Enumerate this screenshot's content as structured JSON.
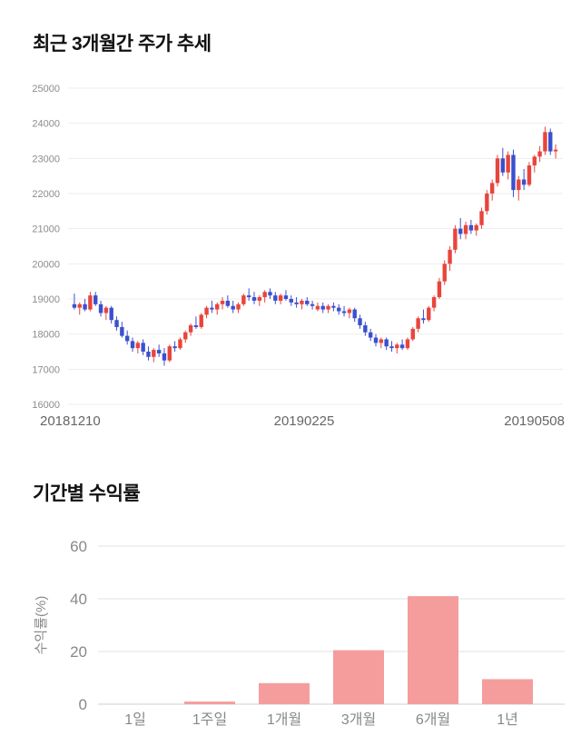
{
  "price_section": {
    "title": "최근 3개월간 주가 추세"
  },
  "returns_section": {
    "title": "기간별 수익률"
  },
  "chart_data": [
    {
      "type": "candlestick",
      "title": "최근 3개월간 주가 추세",
      "ylim": [
        16000,
        25000
      ],
      "y_ticks": [
        16000,
        17000,
        18000,
        19000,
        20000,
        21000,
        22000,
        23000,
        24000,
        25000
      ],
      "x_tick_labels": [
        "20181210",
        "20190225",
        "20190508"
      ],
      "up_color": "#e8453c",
      "down_color": "#3b50ce",
      "grid": true,
      "candles": [
        [
          18850,
          19150,
          18700,
          18750
        ],
        [
          18750,
          18900,
          18550,
          18850
        ],
        [
          18850,
          19000,
          18650,
          18700
        ],
        [
          18700,
          19200,
          18650,
          19100
        ],
        [
          19100,
          19200,
          18800,
          18850
        ],
        [
          18850,
          18950,
          18500,
          18600
        ],
        [
          18600,
          18800,
          18400,
          18750
        ],
        [
          18750,
          18800,
          18300,
          18400
        ],
        [
          18400,
          18500,
          18100,
          18200
        ],
        [
          18200,
          18350,
          17900,
          17950
        ],
        [
          17950,
          18100,
          17700,
          17800
        ],
        [
          17800,
          17900,
          17500,
          17600
        ],
        [
          17600,
          17800,
          17450,
          17750
        ],
        [
          17750,
          17850,
          17400,
          17500
        ],
        [
          17500,
          17650,
          17250,
          17350
        ],
        [
          17350,
          17600,
          17200,
          17550
        ],
        [
          17550,
          17700,
          17350,
          17450
        ],
        [
          17450,
          17600,
          17100,
          17250
        ],
        [
          17250,
          17700,
          17200,
          17650
        ],
        [
          17650,
          17800,
          17500,
          17600
        ],
        [
          17600,
          17900,
          17550,
          17850
        ],
        [
          17850,
          18100,
          17750,
          18050
        ],
        [
          18050,
          18300,
          17950,
          18250
        ],
        [
          18250,
          18500,
          18150,
          18200
        ],
        [
          18200,
          18600,
          18150,
          18550
        ],
        [
          18550,
          18800,
          18450,
          18750
        ],
        [
          18750,
          18950,
          18600,
          18700
        ],
        [
          18700,
          18900,
          18550,
          18850
        ],
        [
          18850,
          19050,
          18700,
          18950
        ],
        [
          18950,
          19100,
          18750,
          18800
        ],
        [
          18800,
          18950,
          18600,
          18700
        ],
        [
          18700,
          18900,
          18600,
          18850
        ],
        [
          18850,
          19150,
          18800,
          19100
        ],
        [
          19100,
          19300,
          18950,
          19050
        ],
        [
          19050,
          19200,
          18850,
          18950
        ],
        [
          18950,
          19100,
          18800,
          19050
        ],
        [
          19050,
          19250,
          18900,
          19200
        ],
        [
          19200,
          19300,
          19000,
          19100
        ],
        [
          19100,
          19200,
          18850,
          18950
        ],
        [
          18950,
          19150,
          18850,
          19100
        ],
        [
          19100,
          19250,
          18950,
          19000
        ],
        [
          19000,
          19100,
          18800,
          18900
        ],
        [
          18900,
          19050,
          18750,
          18850
        ],
        [
          18850,
          19000,
          18700,
          18950
        ],
        [
          18950,
          19050,
          18800,
          18850
        ],
        [
          18850,
          18950,
          18700,
          18800
        ],
        [
          18700,
          18900,
          18650,
          18800
        ],
        [
          18800,
          18900,
          18600,
          18700
        ],
        [
          18700,
          18850,
          18600,
          18800
        ],
        [
          18800,
          18900,
          18650,
          18750
        ],
        [
          18750,
          18850,
          18550,
          18650
        ],
        [
          18650,
          18800,
          18500,
          18600
        ],
        [
          18600,
          18750,
          18450,
          18700
        ],
        [
          18700,
          18750,
          18350,
          18450
        ],
        [
          18450,
          18550,
          18150,
          18250
        ],
        [
          18250,
          18350,
          17950,
          18050
        ],
        [
          18050,
          18150,
          17800,
          17900
        ],
        [
          17900,
          18000,
          17650,
          17750
        ],
        [
          17750,
          17900,
          17600,
          17850
        ],
        [
          17850,
          17900,
          17550,
          17650
        ],
        [
          17650,
          17800,
          17500,
          17600
        ],
        [
          17600,
          17750,
          17450,
          17700
        ],
        [
          17700,
          17850,
          17550,
          17600
        ],
        [
          17600,
          17900,
          17550,
          17850
        ],
        [
          17850,
          18200,
          17800,
          18150
        ],
        [
          18150,
          18500,
          18050,
          18450
        ],
        [
          18450,
          18700,
          18300,
          18400
        ],
        [
          18400,
          18800,
          18350,
          18750
        ],
        [
          18750,
          19100,
          18650,
          19050
        ],
        [
          19050,
          19600,
          19000,
          19500
        ],
        [
          19500,
          20100,
          19400,
          20000
        ],
        [
          20000,
          20500,
          19800,
          20400
        ],
        [
          20400,
          21100,
          20300,
          21000
        ],
        [
          21000,
          21300,
          20700,
          20850
        ],
        [
          20850,
          21200,
          20700,
          21100
        ],
        [
          21100,
          21250,
          20850,
          20950
        ],
        [
          20950,
          21150,
          20800,
          21100
        ],
        [
          21100,
          21600,
          21000,
          21500
        ],
        [
          21500,
          22100,
          21400,
          22000
        ],
        [
          22000,
          22400,
          21800,
          22300
        ],
        [
          22300,
          23100,
          22200,
          23000
        ],
        [
          23000,
          23300,
          22500,
          22600
        ],
        [
          22600,
          23200,
          22400,
          23100
        ],
        [
          23100,
          23250,
          21900,
          22100
        ],
        [
          22100,
          22500,
          21800,
          22400
        ],
        [
          22400,
          22700,
          22100,
          22250
        ],
        [
          22250,
          22900,
          22200,
          22800
        ],
        [
          22800,
          23100,
          22600,
          23050
        ],
        [
          23050,
          23350,
          22900,
          23200
        ],
        [
          23200,
          23900,
          23100,
          23750
        ],
        [
          23750,
          23850,
          23100,
          23200
        ],
        [
          23200,
          23400,
          23000,
          23250
        ]
      ]
    },
    {
      "type": "bar",
      "title": "기간별 수익률",
      "ylabel": "수익률(%)",
      "categories": [
        "1일",
        "1주일",
        "1개월",
        "3개월",
        "6개월",
        "1년"
      ],
      "values": [
        0,
        1,
        8,
        20.5,
        41,
        9.5
      ],
      "ylim": [
        0,
        60
      ],
      "y_ticks": [
        0,
        20,
        40,
        60
      ],
      "bar_color": "#f59d9d",
      "grid": true,
      "legend": "none"
    }
  ]
}
